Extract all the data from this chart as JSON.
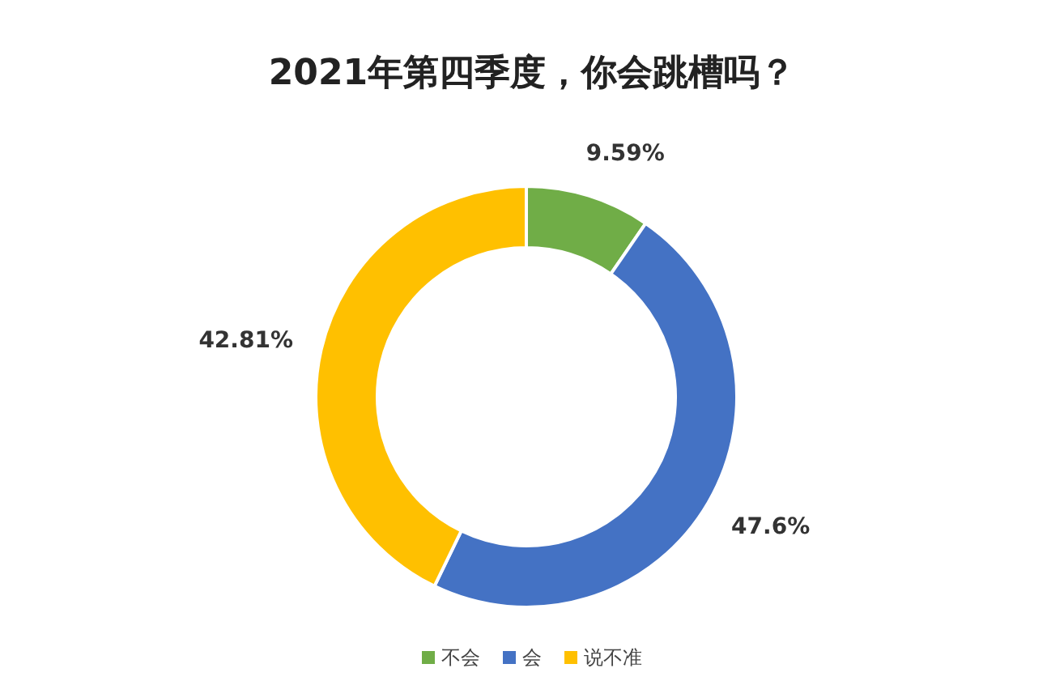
{
  "chart_data": {
    "type": "donut",
    "title": "2021年第四季度，你会跳槽吗？",
    "categories": [
      "不会",
      "会",
      "说不准"
    ],
    "values": [
      9.59,
      47.6,
      42.81
    ],
    "colors": [
      "#70ad47",
      "#4472c4",
      "#ffc000"
    ],
    "value_labels": [
      "9.59%",
      "47.6%",
      "42.81%"
    ],
    "legend": "bottom"
  }
}
